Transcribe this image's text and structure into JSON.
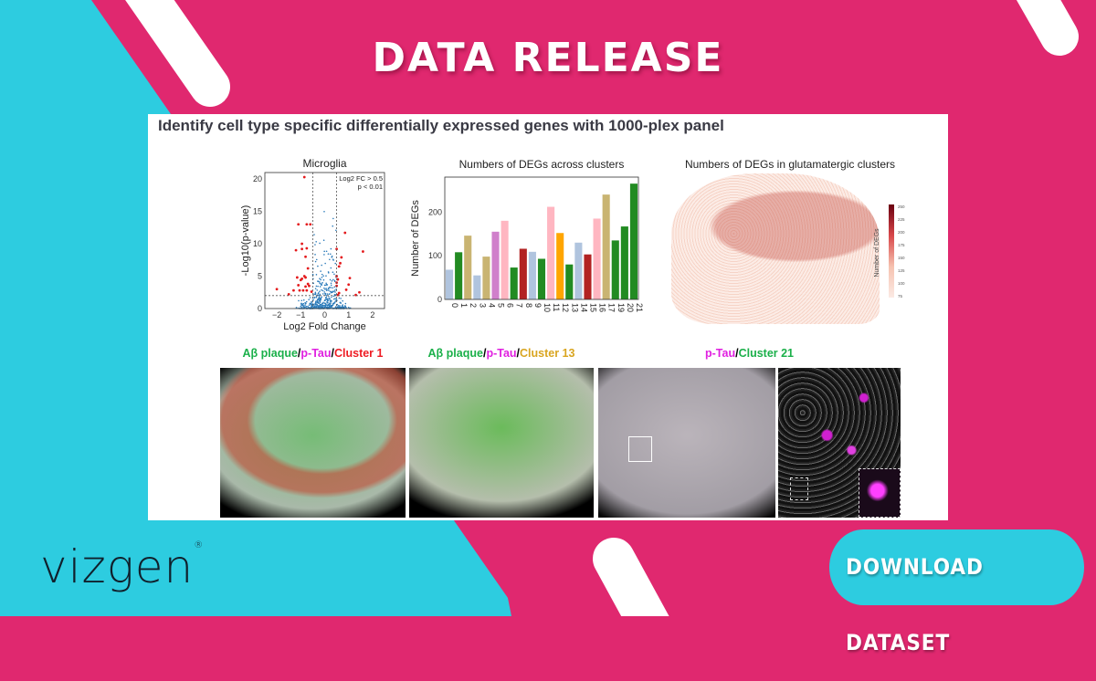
{
  "banner": {
    "headline": "DATA RELEASE",
    "button_label": "DOWNLOAD DATASET",
    "logo_text": "vizgen",
    "logo_mark": "®",
    "colors": {
      "background_pink": "#e0286f",
      "accent_cyan": "#2dcce0",
      "pill_white": "#ffffff"
    }
  },
  "figure": {
    "title": "Identify cell type specific differentially expressed genes with 1000-plex panel",
    "image_labels": [
      {
        "parts": [
          {
            "text": "Aβ plaque",
            "color": "#1bb04a"
          },
          {
            "text": "/",
            "color": "#222222"
          },
          {
            "text": "p-Tau",
            "color": "#e020e0"
          },
          {
            "text": "/",
            "color": "#222222"
          },
          {
            "text": "Cluster 1",
            "color": "#ee1c24"
          }
        ]
      },
      {
        "parts": [
          {
            "text": "Aβ plaque",
            "color": "#1bb04a"
          },
          {
            "text": "/",
            "color": "#222222"
          },
          {
            "text": "p-Tau",
            "color": "#e020e0"
          },
          {
            "text": "/",
            "color": "#222222"
          },
          {
            "text": "Cluster 13",
            "color": "#d9a520"
          }
        ]
      },
      {
        "parts": [
          {
            "text": "p-Tau",
            "color": "#e020e0"
          },
          {
            "text": "/",
            "color": "#222222"
          },
          {
            "text": "Cluster 21",
            "color": "#1bb04a"
          }
        ]
      }
    ]
  },
  "chart_data": [
    {
      "type": "scatter",
      "title": "Microglia",
      "xlabel": "Log2 Fold Change",
      "ylabel": "-Log10(p-value)",
      "xlim": [
        -2.5,
        2.5
      ],
      "ylim": [
        0,
        21
      ],
      "xticks": [
        -2,
        -1,
        0,
        1,
        2
      ],
      "yticks": [
        0,
        5,
        10,
        15,
        20
      ],
      "annotation": [
        "Log2 FC > 0.5",
        "p < 0.01"
      ],
      "thresholds": {
        "x": [
          -0.5,
          0.5
        ],
        "y": 2
      },
      "grid": false,
      "significant_color": "#e41a1c",
      "nonsignificant_color": "#2b7bba",
      "significant_points": [
        [
          -0.85,
          20.3
        ],
        [
          -1.1,
          13
        ],
        [
          -0.75,
          13
        ],
        [
          -0.6,
          13
        ],
        [
          -0.95,
          10
        ],
        [
          -1.2,
          9
        ],
        [
          -0.95,
          9.2
        ],
        [
          -0.75,
          9.3
        ],
        [
          -0.8,
          8
        ],
        [
          -0.7,
          6.2
        ],
        [
          -1.15,
          4.8
        ],
        [
          -0.95,
          4.6
        ],
        [
          -0.85,
          5
        ],
        [
          -0.8,
          4.8
        ],
        [
          -1,
          4.4
        ],
        [
          -0.7,
          3.8
        ],
        [
          -0.65,
          3.5
        ],
        [
          -1.1,
          3.6
        ],
        [
          -0.8,
          3.4
        ],
        [
          -1.3,
          2.8
        ],
        [
          -1.05,
          2.8
        ],
        [
          -0.9,
          2.8
        ],
        [
          -0.75,
          2.8
        ],
        [
          -2,
          3
        ],
        [
          -1.5,
          2.2
        ],
        [
          -0.55,
          2.6
        ],
        [
          0.5,
          9.2
        ],
        [
          0.85,
          11.7
        ],
        [
          1.6,
          8.8
        ],
        [
          0.7,
          7.9
        ],
        [
          0.65,
          7
        ],
        [
          0.6,
          6.5
        ],
        [
          0.5,
          5
        ],
        [
          0.55,
          4.5
        ],
        [
          1.05,
          4.7
        ],
        [
          0.5,
          4
        ],
        [
          1,
          3.7
        ],
        [
          0.5,
          3.5
        ],
        [
          0.9,
          2.9
        ],
        [
          1.45,
          2.5
        ],
        [
          1.3,
          2.1
        ],
        [
          0.6,
          2.4
        ],
        [
          0.55,
          2.1
        ]
      ]
    },
    {
      "type": "bar",
      "title": "Numbers of DEGs across clusters",
      "xlabel": "",
      "ylabel": "Number of DEGs",
      "ylim": [
        0,
        280
      ],
      "yticks": [
        0,
        100,
        200
      ],
      "grid": false,
      "categories": [
        "0",
        "1",
        "2",
        "3",
        "4",
        "5",
        "6",
        "7",
        "8",
        "9",
        "10",
        "11",
        "12",
        "13",
        "14",
        "15",
        "16",
        "17",
        "19",
        "20",
        "21"
      ],
      "values": [
        68,
        108,
        146,
        55,
        98,
        155,
        180,
        73,
        116,
        109,
        93,
        212,
        152,
        80,
        130,
        103,
        185,
        240,
        135,
        167,
        265
      ],
      "colors": [
        "#b0c4de",
        "#228b22",
        "#c9b472",
        "#b0c4de",
        "#c9b472",
        "#d07fcb",
        "#ffb6c1",
        "#228b22",
        "#b22222",
        "#b0c4de",
        "#228b22",
        "#ffb6c1",
        "#ffa500",
        "#228b22",
        "#b0c4de",
        "#b22222",
        "#ffb6c1",
        "#c9b472",
        "#228b22",
        "#228b22",
        "#228b22"
      ]
    },
    {
      "type": "heatmap",
      "title": "Numbers of DEGs in glutamatergic clusters",
      "colorbar_label": "Number of DEGs",
      "colorbar_ticks": [
        75,
        100,
        125,
        150,
        175,
        200,
        225,
        250
      ],
      "colormap": [
        "#fbeae4",
        "#6b0010"
      ]
    }
  ]
}
